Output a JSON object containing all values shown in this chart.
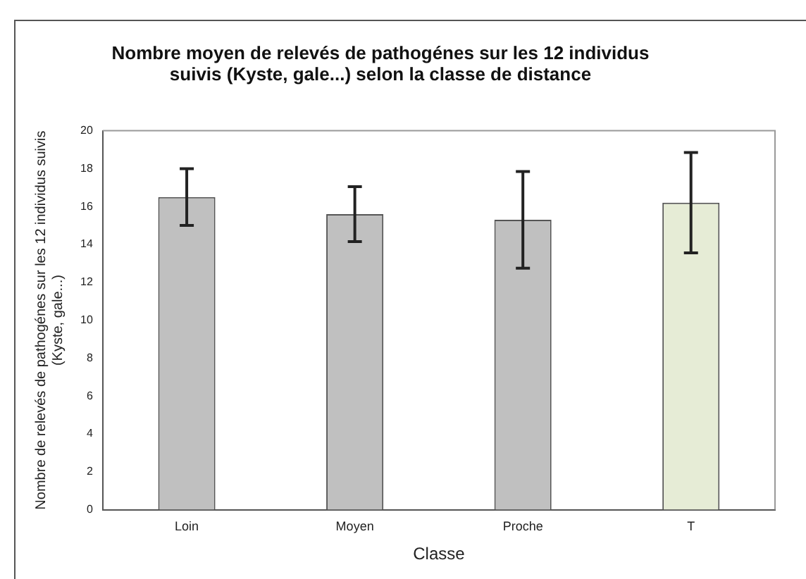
{
  "chart_data": {
    "type": "bar",
    "title": "Nombre moyen de relevés de pathogénes sur les 12 individus suivis (Kyste, gale...) selon la classe de distance",
    "xlabel": "Classe",
    "ylabel": "Nombre de relevés de pathogénes sur les 12 individus suivis (Kyste, gale...)",
    "categories": [
      "Loin",
      "Moyen",
      "Proche",
      "T"
    ],
    "values": [
      16.5,
      15.6,
      15.3,
      16.2
    ],
    "errors": [
      1.5,
      1.45,
      2.55,
      2.65
    ],
    "colors": [
      "#c0c0c0",
      "#c0c0c0",
      "#c0c0c0",
      "#e6ecd6"
    ],
    "ylim": [
      0,
      20
    ],
    "yticks": [
      0,
      2,
      4,
      6,
      8,
      10,
      12,
      14,
      16,
      18,
      20
    ],
    "grid": false,
    "legend": false
  }
}
